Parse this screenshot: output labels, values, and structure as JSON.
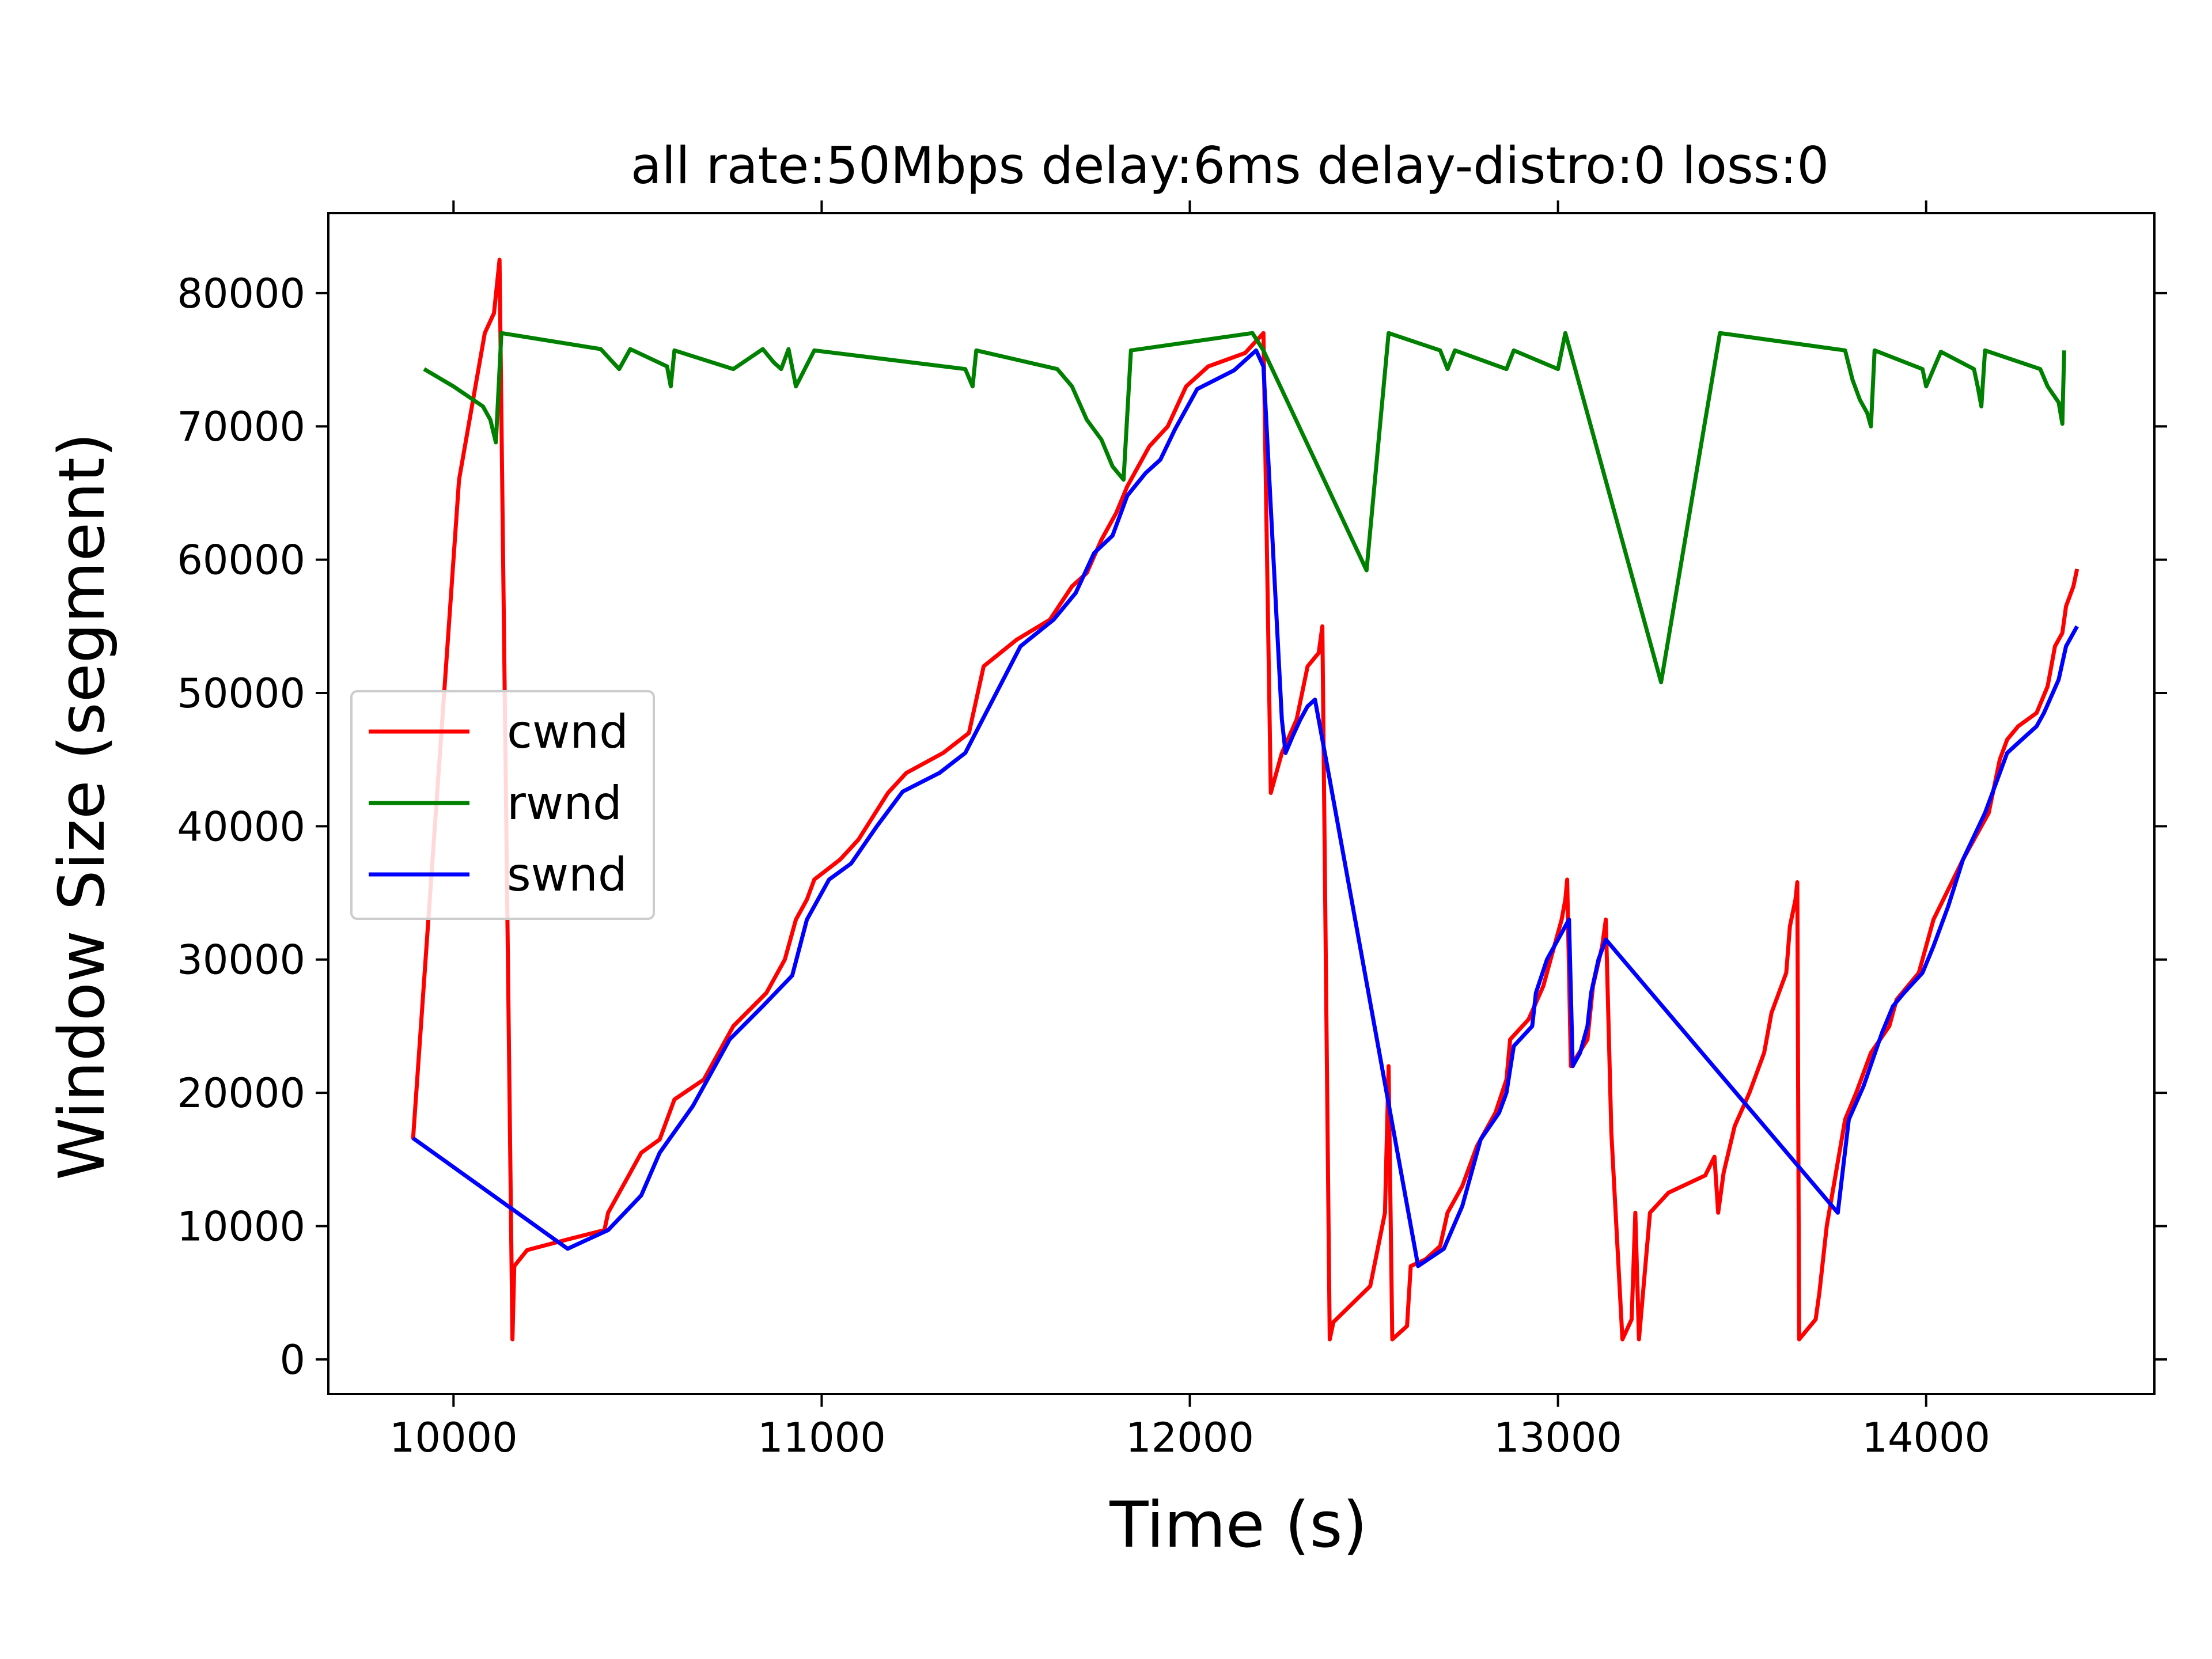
{
  "chart_data": {
    "type": "line",
    "title": "all  rate:50Mbps delay:6ms delay-distro:0 loss:0",
    "xlabel": "Time (s)",
    "ylabel": "Window Size (segment)",
    "xlim": [
      9660,
      14620
    ],
    "ylim": [
      -2600,
      86000
    ],
    "xticks": [
      10000,
      11000,
      12000,
      13000,
      14000
    ],
    "yticks": [
      0,
      10000,
      20000,
      30000,
      40000,
      50000,
      60000,
      70000,
      80000
    ],
    "xtick_labels": [
      "10000",
      "11000",
      "12000",
      "13000",
      "14000"
    ],
    "ytick_labels": [
      "0",
      "10000",
      "20000",
      "30000",
      "40000",
      "50000",
      "60000",
      "70000",
      "80000"
    ],
    "grid": false,
    "legend": "center-left",
    "series": [
      {
        "name": "cwnd",
        "color": "#ff0000",
        "points": [
          [
            9890,
            16500
          ],
          [
            10015,
            66000
          ],
          [
            10085,
            77000
          ],
          [
            10110,
            78500
          ],
          [
            10125,
            82500
          ],
          [
            10160,
            1500
          ],
          [
            10165,
            7000
          ],
          [
            10200,
            8200
          ],
          [
            10310,
            9000
          ],
          [
            10410,
            9700
          ],
          [
            10420,
            11000
          ],
          [
            10450,
            12500
          ],
          [
            10480,
            14000
          ],
          [
            10510,
            15500
          ],
          [
            10560,
            16500
          ],
          [
            10600,
            19500
          ],
          [
            10680,
            21000
          ],
          [
            10720,
            23000
          ],
          [
            10760,
            25000
          ],
          [
            10850,
            27500
          ],
          [
            10900,
            30000
          ],
          [
            10930,
            33000
          ],
          [
            10960,
            34500
          ],
          [
            10980,
            36000
          ],
          [
            11050,
            37500
          ],
          [
            11100,
            39000
          ],
          [
            11180,
            42500
          ],
          [
            11230,
            44000
          ],
          [
            11330,
            45500
          ],
          [
            11400,
            47000
          ],
          [
            11440,
            52000
          ],
          [
            11530,
            54000
          ],
          [
            11620,
            55500
          ],
          [
            11680,
            58000
          ],
          [
            11720,
            59000
          ],
          [
            11760,
            61500
          ],
          [
            11800,
            63500
          ],
          [
            11830,
            65500
          ],
          [
            11890,
            68500
          ],
          [
            11940,
            70000
          ],
          [
            11990,
            73000
          ],
          [
            12050,
            74500
          ],
          [
            12150,
            75500
          ],
          [
            12200,
            77000
          ],
          [
            12220,
            42500
          ],
          [
            12250,
            45500
          ],
          [
            12290,
            48000
          ],
          [
            12320,
            52000
          ],
          [
            12350,
            53000
          ],
          [
            12360,
            55000
          ],
          [
            12380,
            1500
          ],
          [
            12390,
            2800
          ],
          [
            12490,
            5500
          ],
          [
            12530,
            11000
          ],
          [
            12540,
            22000
          ],
          [
            12550,
            1500
          ],
          [
            12590,
            2500
          ],
          [
            12600,
            7000
          ],
          [
            12640,
            7500
          ],
          [
            12680,
            8500
          ],
          [
            12700,
            11000
          ],
          [
            12740,
            13000
          ],
          [
            12780,
            16000
          ],
          [
            12830,
            18500
          ],
          [
            12860,
            21000
          ],
          [
            12870,
            24000
          ],
          [
            12920,
            25500
          ],
          [
            12960,
            28000
          ],
          [
            12990,
            31000
          ],
          [
            13010,
            33000
          ],
          [
            13020,
            34500
          ],
          [
            13025,
            36000
          ],
          [
            13035,
            22000
          ],
          [
            13080,
            24000
          ],
          [
            13095,
            28000
          ],
          [
            13120,
            31000
          ],
          [
            13130,
            33000
          ],
          [
            13145,
            17000
          ],
          [
            13175,
            1500
          ],
          [
            13200,
            3000
          ],
          [
            13210,
            11000
          ],
          [
            13220,
            1500
          ],
          [
            13250,
            11000
          ],
          [
            13300,
            12500
          ],
          [
            13400,
            13800
          ],
          [
            13425,
            15200
          ],
          [
            13435,
            11000
          ],
          [
            13450,
            14000
          ],
          [
            13480,
            17500
          ],
          [
            13520,
            20000
          ],
          [
            13560,
            23000
          ],
          [
            13580,
            26000
          ],
          [
            13620,
            29000
          ],
          [
            13630,
            32500
          ],
          [
            13645,
            34500
          ],
          [
            13650,
            35800
          ],
          [
            13655,
            1500
          ],
          [
            13700,
            3000
          ],
          [
            13710,
            5000
          ],
          [
            13730,
            10000
          ],
          [
            13780,
            18000
          ],
          [
            13810,
            20000
          ],
          [
            13850,
            23000
          ],
          [
            13900,
            25000
          ],
          [
            13920,
            27000
          ],
          [
            13980,
            29000
          ],
          [
            14020,
            33000
          ],
          [
            14100,
            37500
          ],
          [
            14170,
            41000
          ],
          [
            14200,
            45000
          ],
          [
            14220,
            46500
          ],
          [
            14250,
            47500
          ],
          [
            14300,
            48500
          ],
          [
            14330,
            50500
          ],
          [
            14350,
            53500
          ],
          [
            14370,
            54500
          ],
          [
            14380,
            56500
          ],
          [
            14400,
            58000
          ],
          [
            14410,
            59300
          ]
        ]
      },
      {
        "name": "rwnd",
        "color": "#008000",
        "points": [
          [
            9920,
            74300
          ],
          [
            10000,
            73000
          ],
          [
            10080,
            71500
          ],
          [
            10100,
            70500
          ],
          [
            10115,
            68800
          ],
          [
            10130,
            77000
          ],
          [
            10400,
            75800
          ],
          [
            10450,
            74300
          ],
          [
            10480,
            75800
          ],
          [
            10580,
            74500
          ],
          [
            10590,
            73000
          ],
          [
            10600,
            75700
          ],
          [
            10760,
            74300
          ],
          [
            10840,
            75800
          ],
          [
            10870,
            74800
          ],
          [
            10890,
            74300
          ],
          [
            10910,
            75800
          ],
          [
            10930,
            73000
          ],
          [
            10980,
            75700
          ],
          [
            11390,
            74300
          ],
          [
            11410,
            73000
          ],
          [
            11420,
            75700
          ],
          [
            11640,
            74300
          ],
          [
            11680,
            73000
          ],
          [
            11720,
            70500
          ],
          [
            11760,
            69000
          ],
          [
            11790,
            67000
          ],
          [
            11820,
            66000
          ],
          [
            11840,
            75700
          ],
          [
            12170,
            77000
          ],
          [
            12200,
            75700
          ],
          [
            12480,
            59200
          ],
          [
            12540,
            77000
          ],
          [
            12680,
            75700
          ],
          [
            12700,
            74300
          ],
          [
            12720,
            75700
          ],
          [
            12860,
            74300
          ],
          [
            12880,
            75700
          ],
          [
            13000,
            74300
          ],
          [
            13020,
            77000
          ],
          [
            13280,
            50800
          ],
          [
            13440,
            77000
          ],
          [
            13780,
            75700
          ],
          [
            13800,
            73500
          ],
          [
            13820,
            72000
          ],
          [
            13840,
            71000
          ],
          [
            13850,
            70000
          ],
          [
            13860,
            75700
          ],
          [
            13990,
            74300
          ],
          [
            14000,
            73000
          ],
          [
            14020,
            74300
          ],
          [
            14040,
            75600
          ],
          [
            14130,
            74300
          ],
          [
            14140,
            73000
          ],
          [
            14150,
            71500
          ],
          [
            14160,
            75700
          ],
          [
            14310,
            74300
          ],
          [
            14330,
            73000
          ],
          [
            14360,
            71800
          ],
          [
            14370,
            70200
          ],
          [
            14375,
            75700
          ]
        ]
      },
      {
        "name": "swnd",
        "color": "#0000ff",
        "points": [
          [
            9890,
            16600
          ],
          [
            10310,
            8300
          ],
          [
            10420,
            9700
          ],
          [
            10510,
            12300
          ],
          [
            10560,
            15500
          ],
          [
            10650,
            19000
          ],
          [
            10750,
            24000
          ],
          [
            10840,
            26500
          ],
          [
            10920,
            28800
          ],
          [
            10960,
            33000
          ],
          [
            11020,
            36000
          ],
          [
            11080,
            37200
          ],
          [
            11150,
            40000
          ],
          [
            11220,
            42600
          ],
          [
            11320,
            44000
          ],
          [
            11390,
            45500
          ],
          [
            11540,
            53500
          ],
          [
            11630,
            55500
          ],
          [
            11690,
            57500
          ],
          [
            11740,
            60500
          ],
          [
            11790,
            61800
          ],
          [
            11830,
            64800
          ],
          [
            11880,
            66500
          ],
          [
            11920,
            67500
          ],
          [
            11960,
            69800
          ],
          [
            12020,
            72800
          ],
          [
            12120,
            74200
          ],
          [
            12180,
            75700
          ],
          [
            12200,
            74500
          ],
          [
            12250,
            48000
          ],
          [
            12260,
            45500
          ],
          [
            12280,
            46800
          ],
          [
            12300,
            48000
          ],
          [
            12320,
            49000
          ],
          [
            12340,
            49500
          ],
          [
            12380,
            43500
          ],
          [
            12620,
            7000
          ],
          [
            12690,
            8300
          ],
          [
            12740,
            11500
          ],
          [
            12790,
            16500
          ],
          [
            12840,
            18500
          ],
          [
            12860,
            20000
          ],
          [
            12880,
            23500
          ],
          [
            12930,
            25000
          ],
          [
            12940,
            27500
          ],
          [
            12970,
            30000
          ],
          [
            13030,
            33000
          ],
          [
            13040,
            22000
          ],
          [
            13060,
            23000
          ],
          [
            13080,
            25000
          ],
          [
            13090,
            27500
          ],
          [
            13110,
            30000
          ],
          [
            13130,
            31500
          ],
          [
            13760,
            11000
          ],
          [
            13790,
            18000
          ],
          [
            13830,
            20500
          ],
          [
            13880,
            24500
          ],
          [
            13910,
            26500
          ],
          [
            13940,
            27500
          ],
          [
            13990,
            29000
          ],
          [
            14020,
            31000
          ],
          [
            14060,
            34000
          ],
          [
            14100,
            37500
          ],
          [
            14160,
            41000
          ],
          [
            14220,
            45500
          ],
          [
            14260,
            46500
          ],
          [
            14300,
            47500
          ],
          [
            14320,
            48500
          ],
          [
            14360,
            51000
          ],
          [
            14380,
            53500
          ],
          [
            14400,
            54500
          ],
          [
            14410,
            55000
          ]
        ]
      }
    ]
  }
}
